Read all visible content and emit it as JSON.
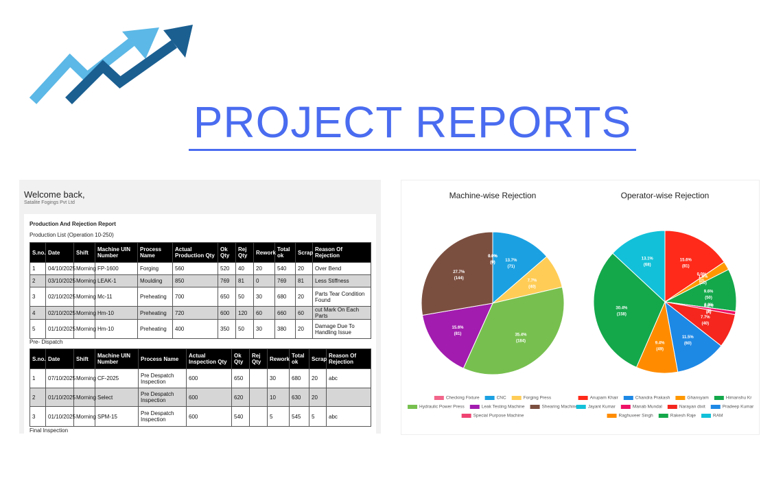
{
  "header": {
    "title": "PROJECT REPORTS"
  },
  "app": {
    "greeting": "Welcome back,",
    "company": "Satalite Fogings Pvt Ltd",
    "report_title": "Production And Rejection Report",
    "production": {
      "caption": "Production List (Operation 10-250)",
      "columns": [
        "S.no.",
        "Date",
        "Shift",
        "Machine UIN Number",
        "Process Name",
        "Actual Production Qty",
        "Ok Qty",
        "Rej Qty",
        "Rework",
        "Total ok",
        "Scrap",
        "Reason Of Rejection"
      ],
      "rows": [
        [
          "1",
          "04/10/2025",
          "Morning",
          "FP-1600",
          "Forging",
          "560",
          "520",
          "40",
          "20",
          "540",
          "20",
          "Over Bend"
        ],
        [
          "2",
          "03/10/2025",
          "Morning",
          "LEAK-1",
          "Moulding",
          "850",
          "769",
          "81",
          "0",
          "769",
          "81",
          "Less Stiffness"
        ],
        [
          "3",
          "02/10/2025",
          "Morning",
          "Mc-11",
          "Preheating",
          "700",
          "650",
          "50",
          "30",
          "680",
          "20",
          "Parts Tear Condition Found"
        ],
        [
          "4",
          "02/10/2025",
          "Morning",
          "Hm-10",
          "Preheating",
          "720",
          "600",
          "120",
          "60",
          "660",
          "60",
          "cut Mark On Each Parts"
        ],
        [
          "5",
          "01/10/2025",
          "Morning",
          "Hm-10",
          "Preheating",
          "400",
          "350",
          "50",
          "30",
          "380",
          "20",
          "Damage Due To Handling Issue"
        ]
      ]
    },
    "pre_dispatch": {
      "caption": "Pre- Dispatch",
      "columns": [
        "S.no.",
        "Date",
        "Shift",
        "Machine UIN Number",
        "Process Name",
        "Actual Inspection Qty",
        "Ok Qty",
        "Rej Qty",
        "Rework",
        "Total ok",
        "Scrap",
        "Reason Of Rejection"
      ],
      "rows": [
        [
          "1",
          "07/10/2025",
          "Morning",
          "CF-2025",
          "Pre Despatch Inspection",
          "600",
          "650",
          null,
          "30",
          "680",
          "20",
          "abc"
        ],
        [
          "2",
          "01/10/2025",
          "Morning",
          "Select",
          "Pre Despatch Inspection",
          "600",
          "620",
          null,
          "10",
          "630",
          "20",
          null
        ],
        [
          "3",
          "01/10/2025",
          "Morning",
          "SPM-15",
          "Pre Despatch Inspection",
          "600",
          "540",
          null,
          "5",
          "545",
          "5",
          "abc"
        ]
      ]
    },
    "final_caption": "Final Inspection"
  },
  "chart_data": [
    {
      "type": "pie",
      "title": "Machine-wise Rejection",
      "series": [
        {
          "name": "Checking Fixture",
          "color": "#f2668b"
        },
        {
          "name": "CNC",
          "color": "#1ba1e2"
        },
        {
          "name": "Forging Press",
          "color": "#ffcd56"
        },
        {
          "name": "Hydraulic Power Press",
          "color": "#77c04f"
        },
        {
          "name": "Leak Testing Machine",
          "color": "#a21caf"
        },
        {
          "name": "Shearing Machine",
          "color": "#7b4f40"
        },
        {
          "name": "Special Purpose Machine",
          "color": "#ef4473"
        }
      ],
      "values": [
        0,
        71,
        40,
        184,
        81,
        144,
        0
      ],
      "percent_labels": [
        "0.0%",
        "13.7%",
        "7.7%",
        "35.4%",
        "15.6%",
        "27.7%",
        "0.0%"
      ],
      "value_labels": [
        "(0)",
        "(71)",
        "(40)",
        "(184)",
        "(81)",
        "(144)",
        "(0)"
      ]
    },
    {
      "type": "pie",
      "title": "Operator-wise Rejection",
      "series": [
        {
          "name": "Anupam Khair",
          "color": "#ff2a1a"
        },
        {
          "name": "Chandra Prakash",
          "color": "#1e88e5"
        },
        {
          "name": "Ghansyam",
          "color": "#ff9800"
        },
        {
          "name": "Himanshu Kr",
          "color": "#14a84b"
        },
        {
          "name": "Jayant Kumar",
          "color": "#12c1d9"
        },
        {
          "name": "Manab Mundal",
          "color": "#ee1166"
        },
        {
          "name": "Narayan dixit",
          "color": "#f4261e"
        },
        {
          "name": "Pradeep Kumar",
          "color": "#1e88e5"
        },
        {
          "name": "Raghuveer Singh",
          "color": "#ff8c00"
        },
        {
          "name": "Rakesh Raje",
          "color": "#14a84b"
        },
        {
          "name": "RAM",
          "color": "#12c1d9"
        }
      ],
      "values": [
        81,
        0,
        10,
        50,
        0,
        4,
        40,
        60,
        49,
        158,
        68
      ],
      "percent_labels": [
        "15.6%",
        "0.0%",
        "1.9%",
        "9.6%",
        "0.0%",
        "0.8%",
        "7.7%",
        "11.5%",
        "9.4%",
        "30.4%",
        "13.1%"
      ],
      "value_labels": [
        "(81)",
        "(0)",
        "(10)",
        "(50)",
        "(0)",
        "(4)",
        "(40)",
        "(60)",
        "(49)",
        "(158)",
        "(68)"
      ]
    }
  ]
}
